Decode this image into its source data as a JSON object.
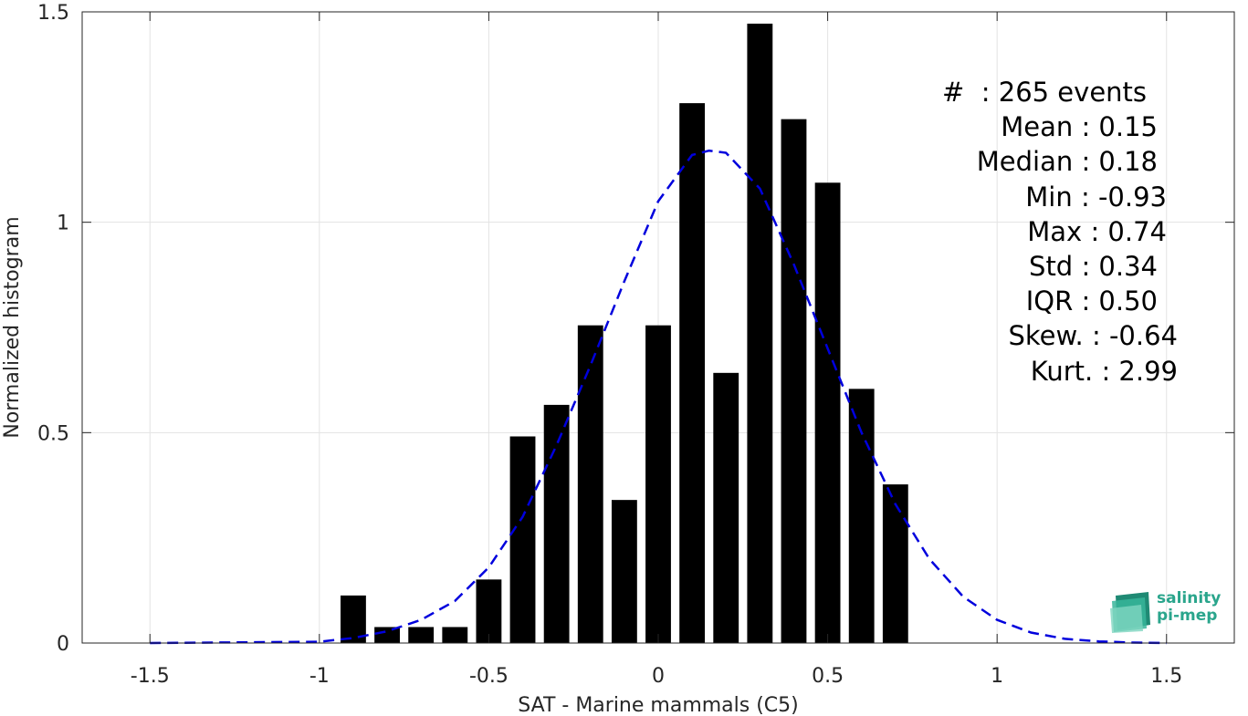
{
  "chart_data": {
    "type": "bar",
    "xlabel": "SAT - Marine mammals (C5)",
    "ylabel": "Normalized histogram",
    "xlim": [
      -1.7,
      1.7
    ],
    "ylim": [
      0,
      1.5
    ],
    "xticks": [
      -1.5,
      -1,
      -0.5,
      0,
      0.5,
      1,
      1.5
    ],
    "xtick_labels": [
      "-1.5",
      "-1",
      "-0.5",
      "0",
      "0.5",
      "1",
      "1.5"
    ],
    "yticks": [
      0,
      0.5,
      1,
      1.5
    ],
    "ytick_labels": [
      "0",
      "0.5",
      "1",
      "1.5"
    ],
    "grid": true,
    "bar_width": 0.075,
    "bar_color": "#000000",
    "bins": [
      {
        "x": -0.9,
        "y": 0.113
      },
      {
        "x": -0.8,
        "y": 0.038
      },
      {
        "x": -0.7,
        "y": 0.038
      },
      {
        "x": -0.6,
        "y": 0.038
      },
      {
        "x": -0.5,
        "y": 0.151
      },
      {
        "x": -0.4,
        "y": 0.491
      },
      {
        "x": -0.3,
        "y": 0.566
      },
      {
        "x": -0.2,
        "y": 0.755
      },
      {
        "x": -0.1,
        "y": 0.34
      },
      {
        "x": 0.0,
        "y": 0.755
      },
      {
        "x": 0.1,
        "y": 1.283
      },
      {
        "x": 0.2,
        "y": 0.642
      },
      {
        "x": 0.3,
        "y": 1.472
      },
      {
        "x": 0.4,
        "y": 1.245
      },
      {
        "x": 0.5,
        "y": 1.094
      },
      {
        "x": 0.6,
        "y": 0.604
      },
      {
        "x": 0.7,
        "y": 0.377
      }
    ],
    "fit_curve": {
      "style": "dashed",
      "color": "#0000dd",
      "x": [
        -1.5,
        -1.0,
        -0.9,
        -0.8,
        -0.7,
        -0.6,
        -0.5,
        -0.4,
        -0.3,
        -0.2,
        -0.1,
        0.0,
        0.1,
        0.15,
        0.2,
        0.3,
        0.4,
        0.5,
        0.6,
        0.7,
        0.8,
        0.9,
        1.0,
        1.1,
        1.2,
        1.3,
        1.4,
        1.5
      ],
      "y": [
        0.0,
        0.003,
        0.012,
        0.028,
        0.055,
        0.1,
        0.18,
        0.3,
        0.47,
        0.66,
        0.86,
        1.05,
        1.16,
        1.17,
        1.165,
        1.08,
        0.9,
        0.7,
        0.5,
        0.33,
        0.2,
        0.11,
        0.055,
        0.025,
        0.01,
        0.004,
        0.001,
        0.0
      ]
    }
  },
  "stats": [
    {
      "label": "#  ",
      "value": ": 265 events"
    },
    {
      "label": "Mean ",
      "value": ": 0.15"
    },
    {
      "label": "Median ",
      "value": ": 0.18"
    },
    {
      "label": "Min ",
      "value": ": -0.93"
    },
    {
      "label": "Max ",
      "value": ": 0.74"
    },
    {
      "label": "Std ",
      "value": ": 0.34"
    },
    {
      "label": "IQR ",
      "value": ": 0.50"
    },
    {
      "label": "Skew. ",
      "value": ": -0.64"
    },
    {
      "label": "Kurt. ",
      "value": ": 2.99"
    }
  ],
  "logo": {
    "line1": "salinity",
    "line2": "pi-mep",
    "color": "#2aa58c"
  }
}
